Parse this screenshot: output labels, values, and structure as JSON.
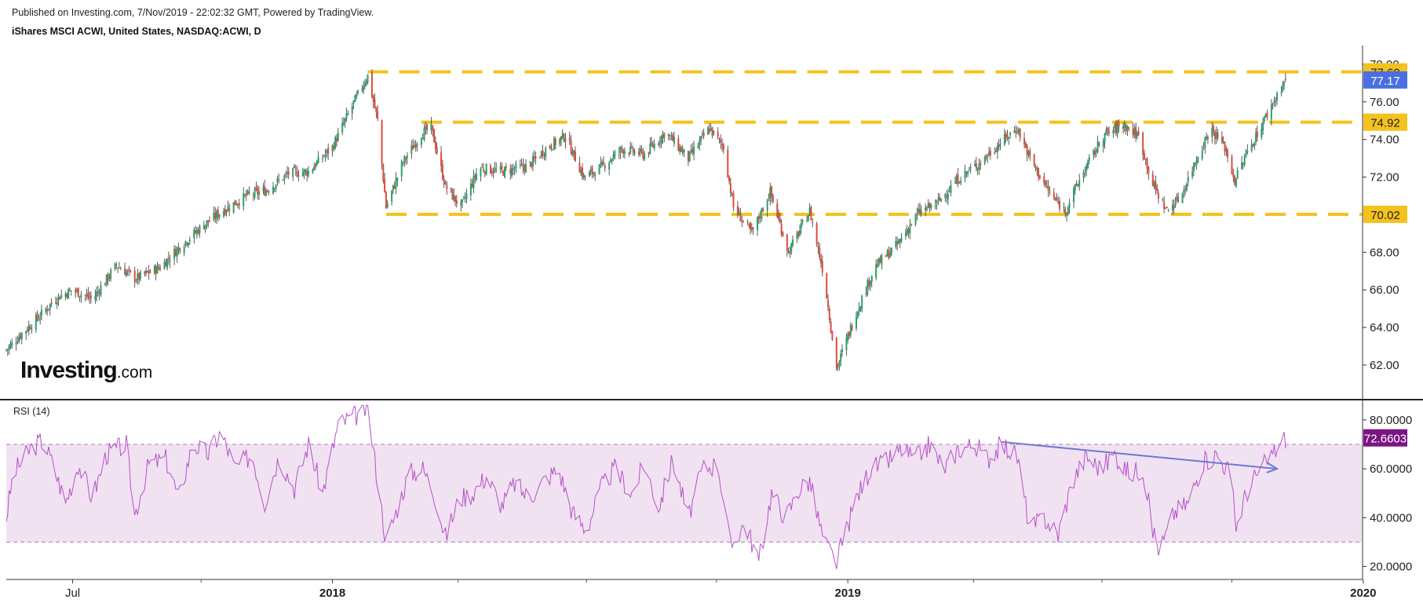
{
  "header": {
    "published": "Published on Investing.com, 7/Nov/2019 - 22:02:32 GMT, Powered by TradingView.",
    "symbol": "iShares MSCI ACWI, United States, NASDAQ:ACWI, D"
  },
  "logo": {
    "brand": "Investing",
    "domain": ".com"
  },
  "rsi": {
    "label": "RSI (14)"
  },
  "colors": {
    "up": "#26a269",
    "down": "#e04a3c",
    "level": "#f4c21d",
    "last_price": "#4a6fe0",
    "rsi_line": "#b452c8",
    "rsi_band": "#f1e2f2",
    "rsi_value_bg": "#7a1583",
    "trend_arrow": "#6d78d2"
  },
  "chart_data": [
    {
      "type": "candlestick",
      "symbol": "NASDAQ:ACWI",
      "interval": "D",
      "x_ticks": [
        {
          "label": "Jul",
          "date": "2017-07-01"
        },
        {
          "label": "2018",
          "date": "2018-01-01"
        },
        {
          "label": "2019",
          "date": "2019-01-01"
        },
        {
          "label": "2020",
          "date": "2020-01-01"
        }
      ],
      "x_range": [
        "2017-05-15",
        "2019-12-31"
      ],
      "y_ticks": [
        "62.00",
        "64.00",
        "66.00",
        "68.00",
        "70.00",
        "72.00",
        "74.00",
        "76.00",
        "78.00"
      ],
      "ylim": [
        60.2,
        79.0
      ],
      "horizontal_levels": [
        {
          "value": 77.6,
          "label": "77.60",
          "from": "2018-01-26"
        },
        {
          "value": 74.92,
          "label": "74.92",
          "from": "2018-03-05"
        },
        {
          "value": 70.02,
          "label": "70.02",
          "from": "2018-02-08"
        }
      ],
      "last_price": {
        "value": 77.17,
        "label": "77.17"
      },
      "close_path": [
        [
          "2017-05-15",
          62.8
        ],
        [
          "2017-05-25",
          63.6
        ],
        [
          "2017-06-05",
          64.4
        ],
        [
          "2017-06-20",
          65.6
        ],
        [
          "2017-07-01",
          66.0
        ],
        [
          "2017-07-15",
          65.5
        ],
        [
          "2017-08-01",
          67.3
        ],
        [
          "2017-08-15",
          66.6
        ],
        [
          "2017-09-01",
          67.2
        ],
        [
          "2017-09-15",
          68.3
        ],
        [
          "2017-10-01",
          69.4
        ],
        [
          "2017-10-15",
          70.2
        ],
        [
          "2017-11-01",
          71.0
        ],
        [
          "2017-11-15",
          71.3
        ],
        [
          "2017-12-01",
          72.2
        ],
        [
          "2017-12-15",
          72.3
        ],
        [
          "2018-01-01",
          73.6
        ],
        [
          "2018-01-15",
          75.8
        ],
        [
          "2018-01-26",
          77.4
        ],
        [
          "2018-02-02",
          75.0
        ],
        [
          "2018-02-08",
          70.4
        ],
        [
          "2018-02-20",
          72.8
        ],
        [
          "2018-03-05",
          74.3
        ],
        [
          "2018-03-12",
          74.6
        ],
        [
          "2018-03-22",
          71.5
        ],
        [
          "2018-04-02",
          70.4
        ],
        [
          "2018-04-15",
          72.5
        ],
        [
          "2018-05-01",
          72.3
        ],
        [
          "2018-05-20",
          72.6
        ],
        [
          "2018-06-01",
          73.5
        ],
        [
          "2018-06-15",
          74.2
        ],
        [
          "2018-06-28",
          72.0
        ],
        [
          "2018-07-10",
          72.5
        ],
        [
          "2018-07-25",
          73.5
        ],
        [
          "2018-08-10",
          73.2
        ],
        [
          "2018-08-25",
          74.4
        ],
        [
          "2018-09-10",
          73.0
        ],
        [
          "2018-09-25",
          74.6
        ],
        [
          "2018-10-05",
          73.6
        ],
        [
          "2018-10-12",
          70.4
        ],
        [
          "2018-10-25",
          69.0
        ],
        [
          "2018-11-07",
          71.2
        ],
        [
          "2018-11-20",
          68.0
        ],
        [
          "2018-12-05",
          70.2
        ],
        [
          "2018-12-15",
          66.8
        ],
        [
          "2018-12-24",
          61.8
        ],
        [
          "2019-01-07",
          64.8
        ],
        [
          "2019-01-20",
          67.2
        ],
        [
          "2019-02-05",
          68.4
        ],
        [
          "2019-02-20",
          70.1
        ],
        [
          "2019-03-05",
          70.6
        ],
        [
          "2019-03-20",
          71.9
        ],
        [
          "2019-04-05",
          72.8
        ],
        [
          "2019-04-20",
          73.9
        ],
        [
          "2019-05-01",
          74.6
        ],
        [
          "2019-05-10",
          73.0
        ],
        [
          "2019-05-25",
          71.0
        ],
        [
          "2019-06-04",
          70.2
        ],
        [
          "2019-06-15",
          72.0
        ],
        [
          "2019-07-01",
          74.2
        ],
        [
          "2019-07-15",
          74.8
        ],
        [
          "2019-07-26",
          74.2
        ],
        [
          "2019-08-05",
          71.6
        ],
        [
          "2019-08-15",
          70.2
        ],
        [
          "2019-08-25",
          71.0
        ],
        [
          "2019-09-05",
          73.0
        ],
        [
          "2019-09-15",
          74.6
        ],
        [
          "2019-09-25",
          73.6
        ],
        [
          "2019-10-02",
          71.8
        ],
        [
          "2019-10-10",
          73.2
        ],
        [
          "2019-10-20",
          74.6
        ],
        [
          "2019-10-28",
          75.8
        ],
        [
          "2019-11-07",
          77.2
        ]
      ]
    },
    {
      "type": "line",
      "name": "RSI (14)",
      "y_ticks": [
        "20.0000",
        "40.0000",
        "60.0000",
        "80.0000"
      ],
      "ylim": [
        15,
        88
      ],
      "bands": [
        30,
        70
      ],
      "last_value": {
        "value": 72.6603,
        "label": "72.6603"
      },
      "trendline": {
        "from": [
          "2019-04-20",
          71
        ],
        "to": [
          "2019-11-01",
          60
        ]
      },
      "points": [
        [
          "2017-05-15",
          40
        ],
        [
          "2017-05-20",
          58
        ],
        [
          "2017-06-01",
          68
        ],
        [
          "2017-06-10",
          72
        ],
        [
          "2017-06-18",
          60
        ],
        [
          "2017-06-26",
          46
        ],
        [
          "2017-07-05",
          62
        ],
        [
          "2017-07-15",
          48
        ],
        [
          "2017-07-25",
          66
        ],
        [
          "2017-08-08",
          70
        ],
        [
          "2017-08-14",
          41
        ],
        [
          "2017-08-24",
          62
        ],
        [
          "2017-09-05",
          64
        ],
        [
          "2017-09-14",
          48
        ],
        [
          "2017-09-24",
          70
        ],
        [
          "2017-10-05",
          66
        ],
        [
          "2017-10-14",
          75
        ],
        [
          "2017-10-24",
          60
        ],
        [
          "2017-11-05",
          66
        ],
        [
          "2017-11-14",
          46
        ],
        [
          "2017-11-24",
          65
        ],
        [
          "2017-12-05",
          52
        ],
        [
          "2017-12-15",
          70
        ],
        [
          "2017-12-25",
          50
        ],
        [
          "2018-01-05",
          78
        ],
        [
          "2018-01-18",
          82
        ],
        [
          "2018-01-26",
          85
        ],
        [
          "2018-02-02",
          55
        ],
        [
          "2018-02-08",
          30
        ],
        [
          "2018-02-16",
          44
        ],
        [
          "2018-02-24",
          58
        ],
        [
          "2018-03-06",
          60
        ],
        [
          "2018-03-14",
          50
        ],
        [
          "2018-03-22",
          32
        ],
        [
          "2018-04-01",
          48
        ],
        [
          "2018-04-10",
          50
        ],
        [
          "2018-04-20",
          57
        ],
        [
          "2018-05-01",
          45
        ],
        [
          "2018-05-10",
          54
        ],
        [
          "2018-05-20",
          48
        ],
        [
          "2018-06-01",
          56
        ],
        [
          "2018-06-10",
          60
        ],
        [
          "2018-06-20",
          42
        ],
        [
          "2018-06-30",
          35
        ],
        [
          "2018-07-10",
          52
        ],
        [
          "2018-07-20",
          60
        ],
        [
          "2018-08-01",
          50
        ],
        [
          "2018-08-10",
          62
        ],
        [
          "2018-08-20",
          44
        ],
        [
          "2018-08-30",
          64
        ],
        [
          "2018-09-10",
          40
        ],
        [
          "2018-09-20",
          60
        ],
        [
          "2018-10-01",
          62
        ],
        [
          "2018-10-10",
          28
        ],
        [
          "2018-10-20",
          38
        ],
        [
          "2018-10-30",
          22
        ],
        [
          "2018-11-08",
          50
        ],
        [
          "2018-11-18",
          40
        ],
        [
          "2018-11-28",
          52
        ],
        [
          "2018-12-05",
          55
        ],
        [
          "2018-12-15",
          30
        ],
        [
          "2018-12-24",
          22
        ],
        [
          "2019-01-07",
          48
        ],
        [
          "2019-01-17",
          60
        ],
        [
          "2019-01-27",
          62
        ],
        [
          "2019-02-08",
          68
        ],
        [
          "2019-02-18",
          64
        ],
        [
          "2019-02-28",
          70
        ],
        [
          "2019-03-10",
          60
        ],
        [
          "2019-03-20",
          68
        ],
        [
          "2019-04-01",
          70
        ],
        [
          "2019-04-10",
          64
        ],
        [
          "2019-04-20",
          70
        ],
        [
          "2019-05-01",
          65
        ],
        [
          "2019-05-10",
          35
        ],
        [
          "2019-05-20",
          40
        ],
        [
          "2019-05-30",
          33
        ],
        [
          "2019-06-09",
          55
        ],
        [
          "2019-06-19",
          65
        ],
        [
          "2019-06-29",
          60
        ],
        [
          "2019-07-09",
          66
        ],
        [
          "2019-07-19",
          58
        ],
        [
          "2019-07-29",
          60
        ],
        [
          "2019-08-05",
          35
        ],
        [
          "2019-08-10",
          26
        ],
        [
          "2019-08-20",
          42
        ],
        [
          "2019-08-30",
          46
        ],
        [
          "2019-09-09",
          62
        ],
        [
          "2019-09-19",
          66
        ],
        [
          "2019-09-29",
          58
        ],
        [
          "2019-10-03",
          36
        ],
        [
          "2019-10-10",
          50
        ],
        [
          "2019-10-18",
          58
        ],
        [
          "2019-10-26",
          64
        ],
        [
          "2019-11-07",
          72.66
        ]
      ]
    }
  ]
}
